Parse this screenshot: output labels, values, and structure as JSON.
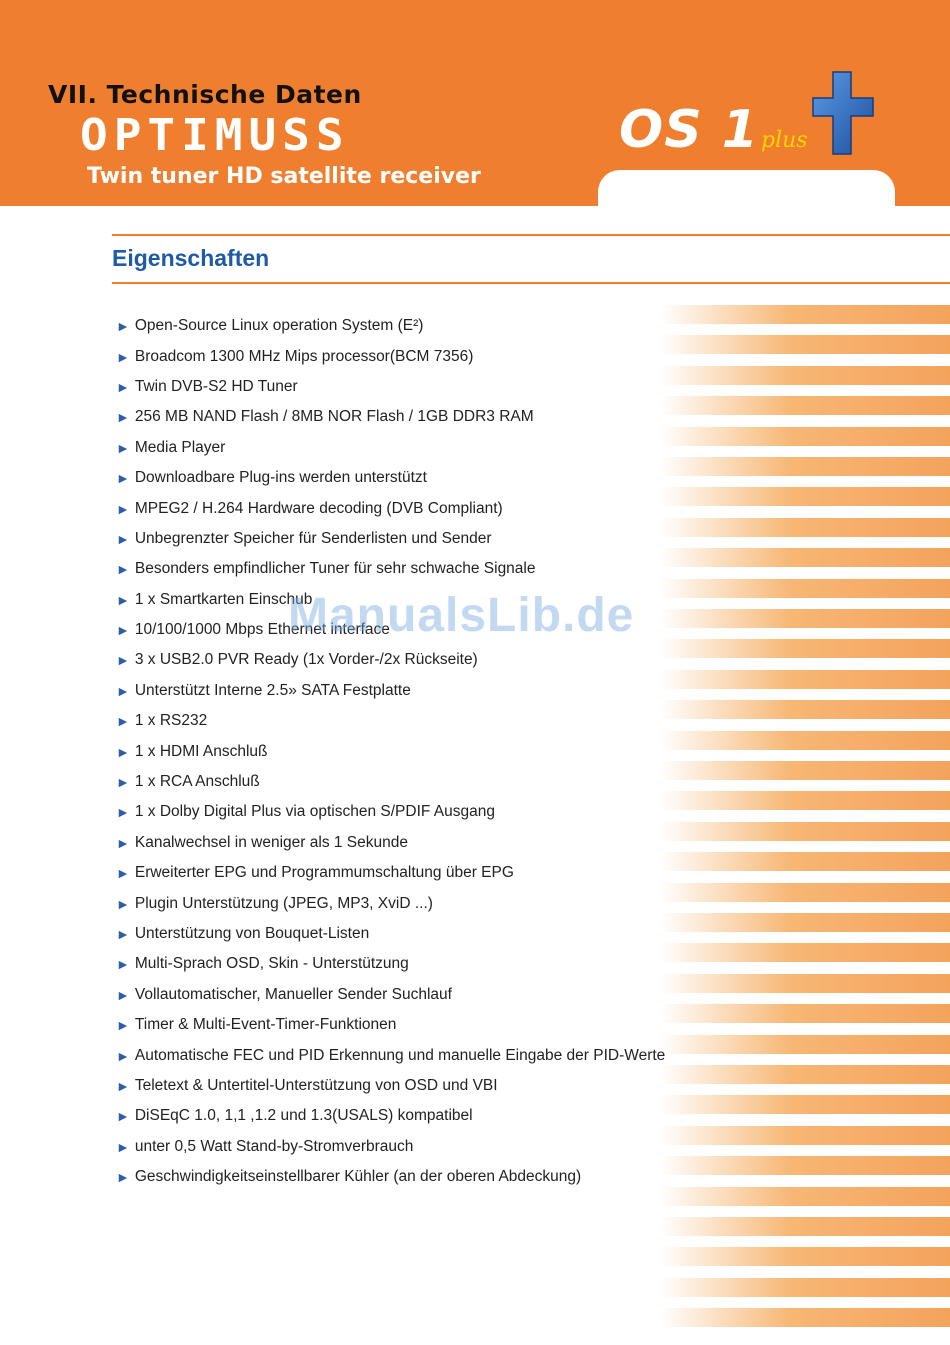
{
  "header": {
    "section_label": "VII. Technische Daten",
    "brand": "OPTIMUSS",
    "subtitle": "Twin tuner HD satellite receiver",
    "logo": {
      "main": "OS 1",
      "small": "plus",
      "cross_color": "#2f6ec4",
      "accent": "#ffd400"
    }
  },
  "colors": {
    "header_orange": "#ef7f2f",
    "title_blue": "#1f5aa6",
    "bullet_blue": "#2d5fa8"
  },
  "section": {
    "title": "Eigenschaften"
  },
  "bullet_glyph": "►",
  "features": [
    "Open-Source Linux operation System (E²)",
    "Broadcom 1300 MHz Mips processor(BCM 7356)",
    "Twin DVB-S2 HD Tuner",
    "256 MB NAND Flash / 8MB NOR Flash / 1GB DDR3 RAM",
    "Media Player",
    "Downloadbare Plug-ins werden unterstützt",
    "MPEG2 / H.264 Hardware decoding (DVB Compliant)",
    "Unbegrenzter Speicher für Senderlisten und Sender",
    "Besonders empfindlicher Tuner für sehr schwache Signale",
    "1 x Smartkarten Einschub",
    "10/100/1000 Mbps Ethernet interface",
    "3 x USB2.0 PVR Ready (1x Vorder-/2x Rückseite)",
    "Unterstützt Interne 2.5» SATA Festplatte",
    "1 x RS232",
    "1 x HDMI Anschluß",
    "1 x RCA Anschluß",
    "1 x Dolby Digital Plus via optischen S/PDIF Ausgang",
    "Kanalwechsel in weniger als 1 Sekunde",
    "Erweiterter EPG und Programmumschaltung über EPG",
    "Plugin Unterstützung (JPEG, MP3, XviD ...)",
    "Unterstützung von Bouquet-Listen",
    "Multi-Sprach OSD, Skin - Unterstützung",
    "Vollautomatischer, Manueller Sender Suchlauf",
    "Timer & Multi-Event-Timer-Funktionen",
    "Automatische FEC und PID Erkennung und manuelle Eingabe der PID-Werte",
    "Teletext & Untertitel-Unterstützung von OSD und VBI",
    "DiSEqC 1.0, 1,1 ,1.2 und 1.3(USALS) kompatibel",
    "unter 0,5 Watt Stand-by-Stromverbrauch",
    "Geschwindigkeitseinstellbarer Kühler (an der oberen Abdeckung)"
  ],
  "watermark": "ManualsLib.de"
}
